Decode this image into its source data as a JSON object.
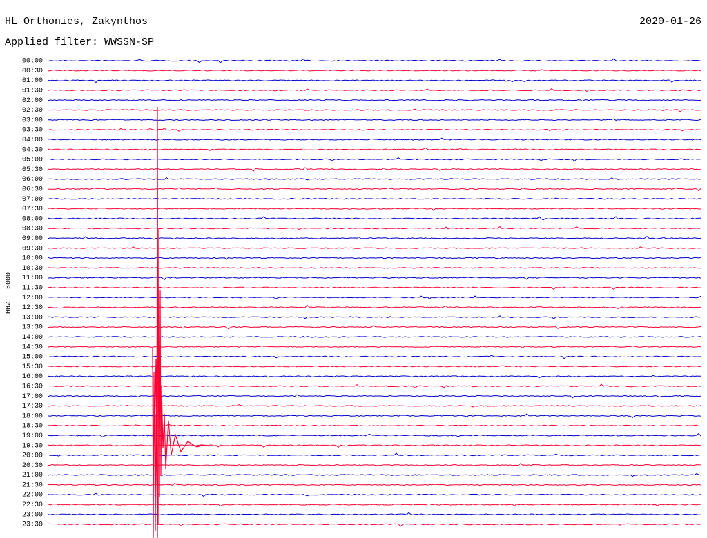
{
  "header": {
    "station": "HL Orthonies, Zakynthos",
    "date": "2020-01-26",
    "filter": "Applied filter: WWSSN-SP"
  },
  "axis_label": "HHZ - 5000",
  "colors": [
    "#0000cc",
    "#ff0033"
  ],
  "rows": [
    "00:00",
    "00:30",
    "01:00",
    "01:30",
    "02:00",
    "02:30",
    "03:00",
    "03:30",
    "04:00",
    "04:30",
    "05:00",
    "05:30",
    "06:00",
    "06:30",
    "07:00",
    "07:30",
    "08:00",
    "08:30",
    "09:00",
    "09:30",
    "10:00",
    "10:30",
    "11:00",
    "11:30",
    "12:00",
    "12:30",
    "13:00",
    "13:30",
    "14:00",
    "14:30",
    "15:00",
    "15:30",
    "16:00",
    "16:30",
    "17:00",
    "17:30",
    "18:00",
    "18:30",
    "19:00",
    "19:30",
    "20:00",
    "20:30",
    "21:00",
    "21:30",
    "22:00",
    "22:30",
    "23:00",
    "23:30"
  ]
}
